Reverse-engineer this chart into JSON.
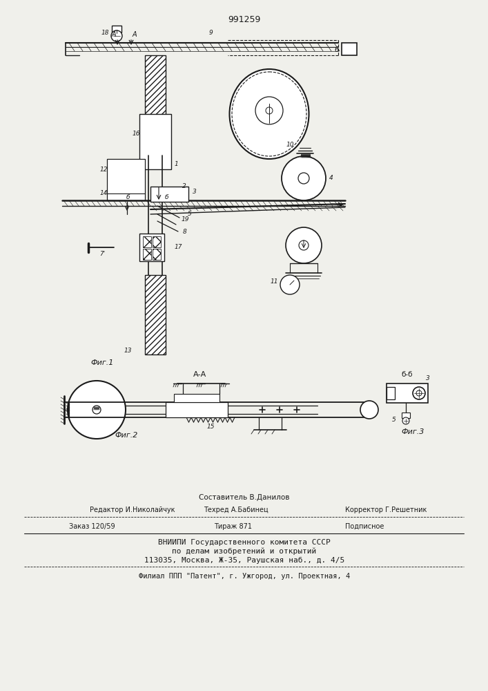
{
  "patent_number": "991259",
  "background_color": "#f0f0eb",
  "line_color": "#1a1a1a",
  "fig1_label": "Фиг.1",
  "fig2_label": "Фиг.2",
  "fig3_label": "Фиг.3",
  "section_aa": "А-А",
  "section_bb": "б-б",
  "footer_line1": "Составитель В.Данилов",
  "footer_line2a": "Редактор И.Николайчук",
  "footer_line2b": "Техред А.Бабинец",
  "footer_line2c": "Корректор Г.Решетник",
  "footer_line3a": "Заказ 120/59",
  "footer_line3b": "Тираж 871",
  "footer_line3c": "Подписное",
  "footer_line4": "ВНИИПИ Государственного комитета СССР",
  "footer_line5": "по делам изобретений и открытий",
  "footer_line6": "113035, Москва, Ж-35, Раушская наб., д. 4/5",
  "footer_line7": "Филиал ППП \"Патент\", г. Ужгород, ул. Проектная, 4"
}
